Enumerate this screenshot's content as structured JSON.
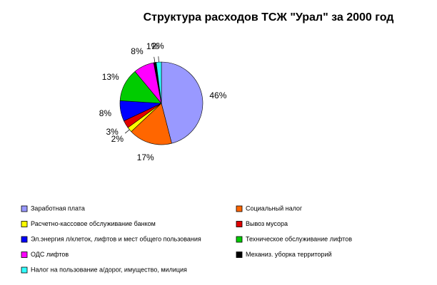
{
  "chart_data": {
    "type": "pie",
    "title": "Структура расходов ТСЖ \"Урал\" за 2000 год",
    "categories": [
      "Заработная плата",
      "Социальный налог",
      "Расчетно-кассовое обслуживание банком",
      "Вывоз мусора",
      "Эл.энергия л/клеток, лифтов и мест общего пользования",
      "Техническое обслуживание лифтов",
      "ОДС лифтов",
      "Механиз. уборка территорий",
      "Налог на пользование а/дорог, имущество, милиция"
    ],
    "values": [
      46,
      17,
      2,
      3,
      8,
      13,
      8,
      1,
      2
    ],
    "value_labels": [
      "46%",
      "17%",
      "2%",
      "3%",
      "8%",
      "13%",
      "8%",
      "1%",
      "2%"
    ],
    "colors": [
      "#9999ff",
      "#ff6600",
      "#ffff00",
      "#e00000",
      "#0000ff",
      "#00cc00",
      "#ff00ff",
      "#000000",
      "#33ffff"
    ]
  }
}
